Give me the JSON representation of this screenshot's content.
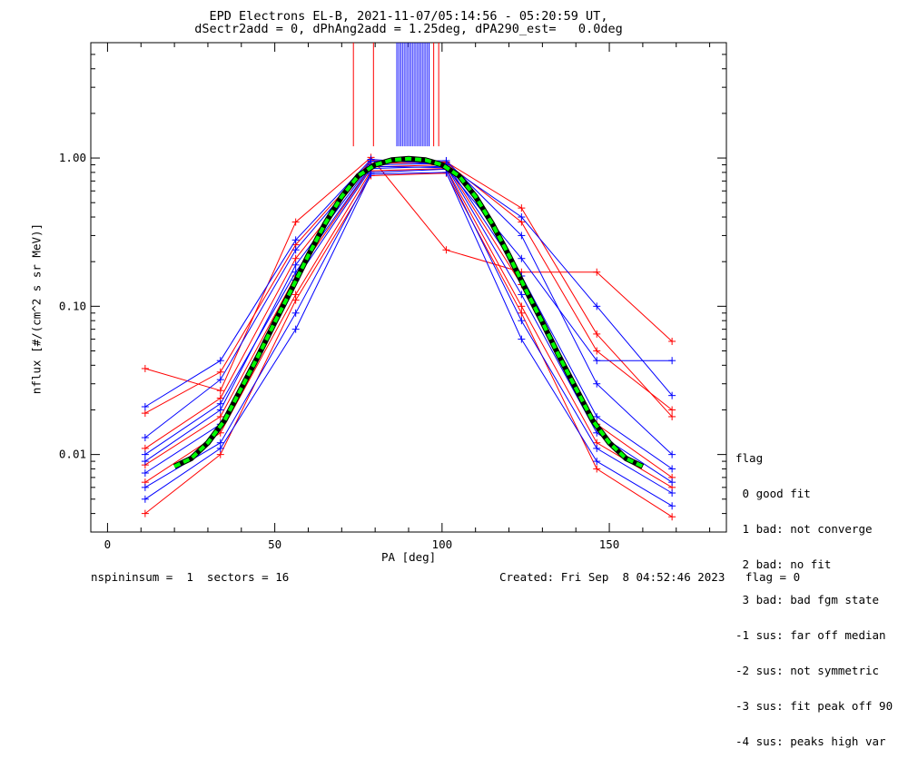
{
  "title_line1": "EPD Electrons EL-B, 2021-11-07/05:14:56 - 05:20:59 UT,",
  "title_line2": "dSectr2add = 0, dPhAng2add = 1.25deg, dPA290_est=   0.0deg",
  "footer_left": "nspininsum =  1  sectors = 16",
  "footer_right": "Created: Fri Sep  8 04:52:46 2023   flag = 0",
  "legend": {
    "title": "flag",
    "items": [
      " 0 good fit",
      " 1 bad: not converge",
      " 2 bad: no fit",
      " 3 bad: bad fgm state",
      "-1 sus: far off median",
      "-2 sus: not symmetric",
      "-3 sus: fit peak off 90",
      "-4 sus: peaks high var"
    ]
  },
  "colors": {
    "series_a": "#0000ff",
    "series_b": "#ff0000",
    "fit": "#00ff00",
    "fit_shadow": "#000000"
  },
  "chart_data": {
    "type": "line",
    "xlabel": "PA [deg]",
    "ylabel": "nflux [#/(cm^2 s sr MeV)]",
    "xlim": [
      -5,
      185
    ],
    "ylim": [
      0.003,
      6
    ],
    "yscale": "log",
    "xticks": [
      0,
      50,
      100,
      150
    ],
    "yticks": [
      0.01,
      0.1,
      1.0
    ],
    "ytick_labels": [
      "0.01",
      "0.10",
      "1.00"
    ],
    "x": [
      11.25,
      33.75,
      56.25,
      78.75,
      101.25,
      123.75,
      146.25,
      168.75
    ],
    "series": [
      {
        "values": [
          0.0075,
          0.016,
          0.15,
          0.85,
          0.88,
          0.12,
          0.014,
          0.0065
        ]
      },
      {
        "values": [
          0.009,
          0.02,
          0.19,
          0.9,
          0.92,
          0.16,
          0.018,
          0.008
        ]
      },
      {
        "values": [
          0.006,
          0.012,
          0.09,
          0.8,
          0.84,
          0.08,
          0.011,
          0.0055
        ]
      },
      {
        "values": [
          0.013,
          0.032,
          0.24,
          0.95,
          0.96,
          0.3,
          0.03,
          0.01
        ]
      },
      {
        "values": [
          0.005,
          0.011,
          0.07,
          0.78,
          0.8,
          0.06,
          0.009,
          0.0045
        ]
      },
      {
        "values": [
          0.021,
          0.043,
          0.28,
          0.98,
          0.9,
          0.4,
          0.1,
          0.025
        ]
      },
      {
        "values": [
          0.01,
          0.022,
          0.17,
          0.88,
          0.86,
          0.21,
          0.043,
          0.043
        ]
      }
    ],
    "series_b": [
      {
        "values": [
          0.0085,
          0.018,
          0.16,
          0.87,
          0.9,
          0.14,
          0.016,
          0.007
        ]
      },
      {
        "values": [
          0.0065,
          0.014,
          0.12,
          0.82,
          0.85,
          0.1,
          0.012,
          0.006
        ]
      },
      {
        "values": [
          0.038,
          0.027,
          0.37,
          1.01,
          0.24,
          0.17,
          0.17,
          0.058
        ]
      },
      {
        "values": [
          0.011,
          0.024,
          0.21,
          0.92,
          0.94,
          0.46,
          0.065,
          0.018
        ]
      },
      {
        "values": [
          0.004,
          0.01,
          0.11,
          0.76,
          0.79,
          0.09,
          0.008,
          0.0038
        ]
      },
      {
        "values": [
          0.019,
          0.036,
          0.26,
          0.96,
          0.93,
          0.37,
          0.05,
          0.02
        ]
      }
    ],
    "fit": {
      "x": [
        20,
        25,
        30,
        35,
        40,
        45,
        50,
        55,
        60,
        65,
        70,
        75,
        80,
        85,
        90,
        95,
        100,
        105,
        110,
        115,
        120,
        125,
        130,
        135,
        140,
        145,
        150,
        155,
        160
      ],
      "values": [
        0.0083,
        0.0094,
        0.012,
        0.017,
        0.028,
        0.046,
        0.078,
        0.13,
        0.22,
        0.36,
        0.55,
        0.76,
        0.9,
        0.97,
        0.99,
        0.97,
        0.9,
        0.76,
        0.55,
        0.36,
        0.22,
        0.13,
        0.078,
        0.046,
        0.028,
        0.017,
        0.012,
        0.0094,
        0.0083
      ]
    }
  }
}
